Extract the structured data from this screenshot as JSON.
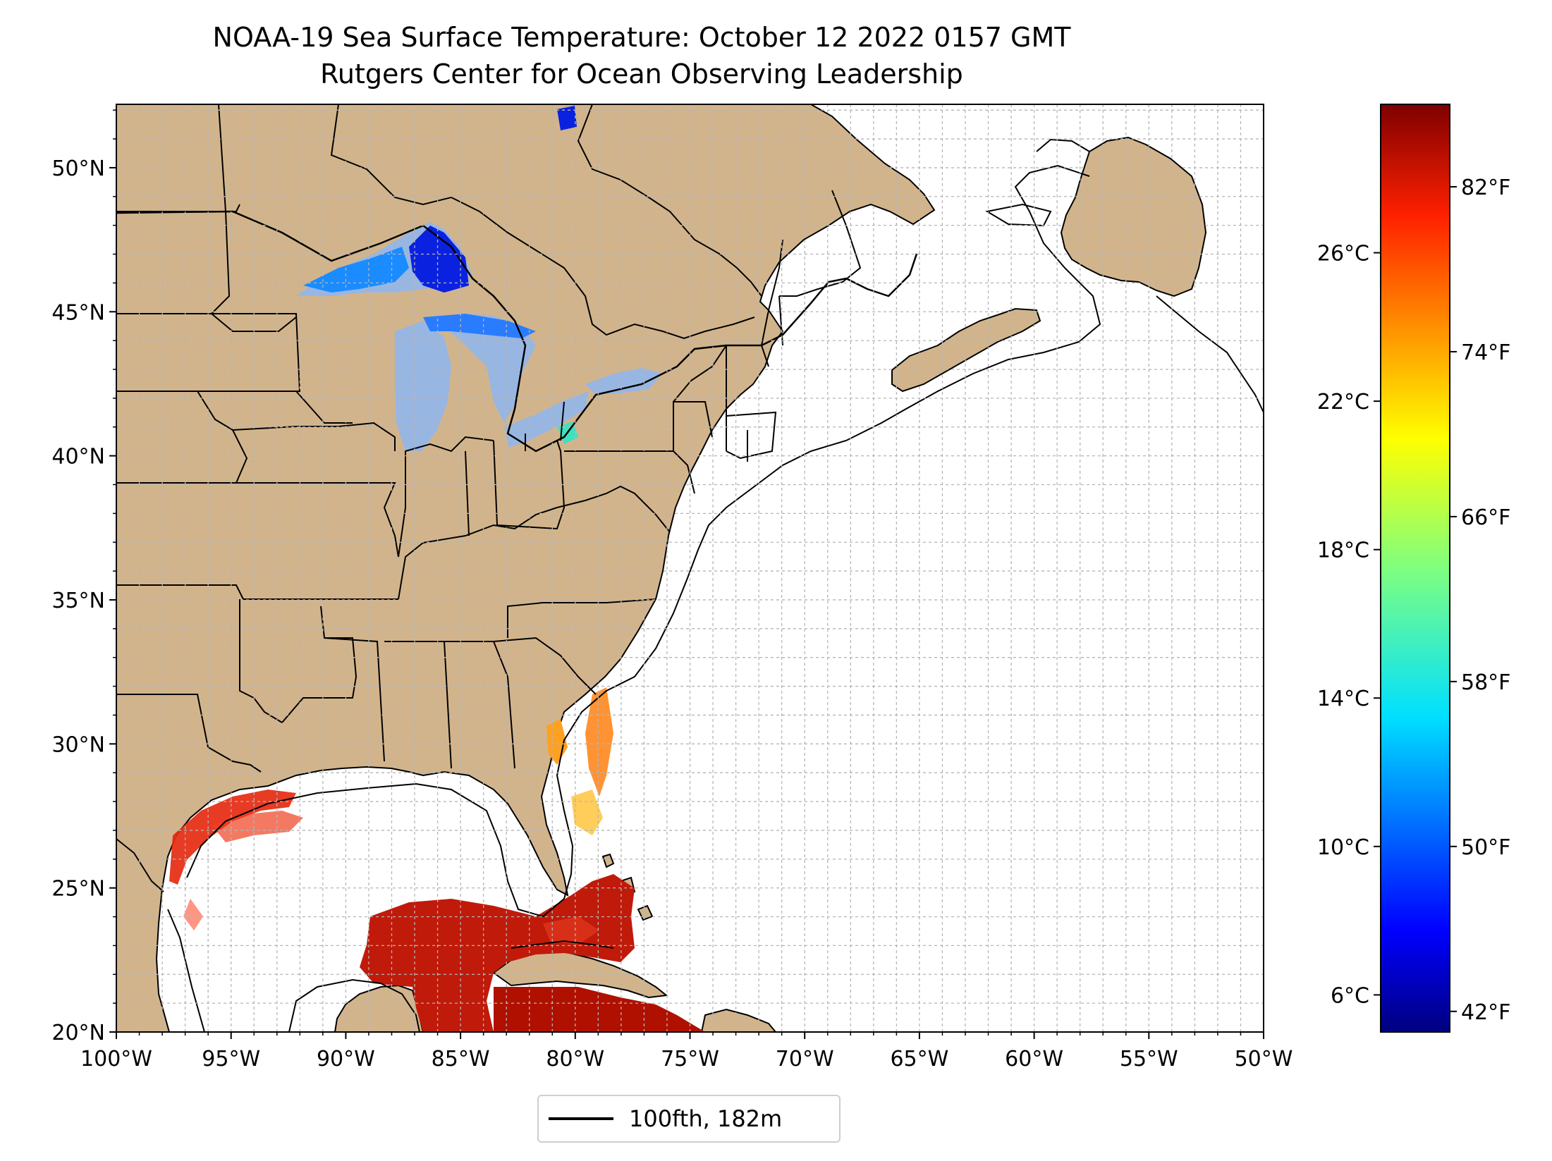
{
  "title": "NOAA-19 Sea Surface Temperature: October 12 2022 0157 GMT",
  "subtitle": "Rutgers Center for Ocean Observing Leadership",
  "map": {
    "lon_range": [
      -100,
      -50
    ],
    "lat_range": [
      20,
      52.2
    ],
    "lon_ticks": [
      "100°W",
      "95°W",
      "90°W",
      "85°W",
      "80°W",
      "75°W",
      "70°W",
      "65°W",
      "60°W",
      "55°W",
      "50°W"
    ],
    "lat_ticks": [
      "20°N",
      "25°N",
      "30°N",
      "35°N",
      "40°N",
      "45°N",
      "50°N"
    ],
    "gridlines": true,
    "land_color": "#d2b48c",
    "ocean_color": "#ffffff"
  },
  "legend": {
    "label": "100fth, 182m",
    "placement": "bottom-center"
  },
  "colorbar": {
    "colormap": "jet",
    "celsius_ticks": [
      "6°C",
      "10°C",
      "14°C",
      "18°C",
      "22°C",
      "26°C"
    ],
    "fahrenheit_ticks": [
      "42°F",
      "50°F",
      "58°F",
      "66°F",
      "74°F",
      "82°F"
    ]
  }
}
